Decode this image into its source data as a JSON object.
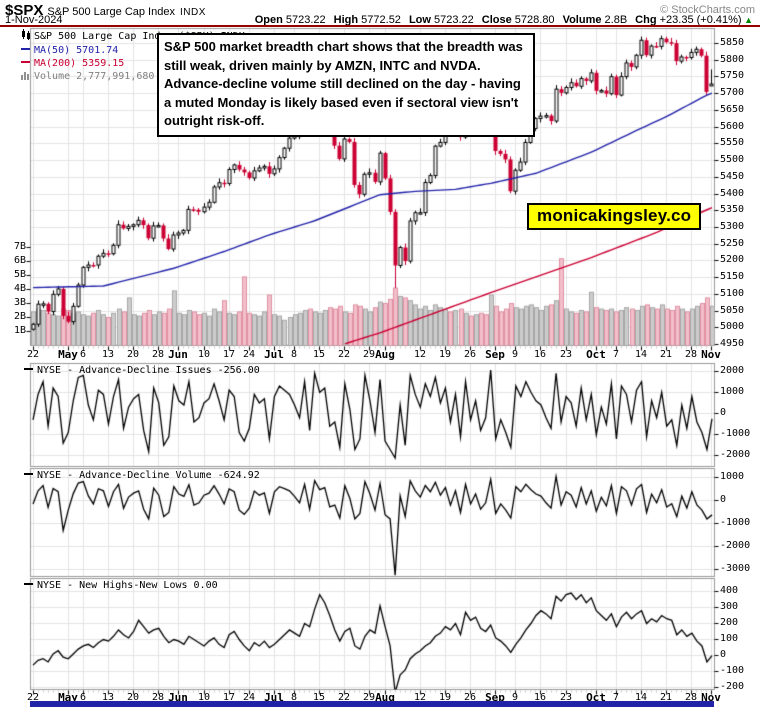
{
  "header": {
    "symbol": "$SPX",
    "name": "S&P 500 Large Cap Index",
    "exchange": "INDX",
    "credit": "© StockCharts.com",
    "date": "1-Nov-2024",
    "ohlc": [
      {
        "label": "Open",
        "value": "5723.22"
      },
      {
        "label": "High",
        "value": "5772.52"
      },
      {
        "label": "Low",
        "value": "5723.22"
      },
      {
        "label": "Close",
        "value": "5728.80"
      },
      {
        "label": "Volume",
        "value": "2.8B"
      },
      {
        "label": "Chg",
        "value": "+23.35 (+0.41%)"
      }
    ],
    "chg_arrow": "▲",
    "chg_direction": "up"
  },
  "main_legend": {
    "title": "S&P 500 Large Cap Index ($SPX) INDX",
    "ma50_label": "MA(50) 5701.74",
    "ma200_label": "MA(200) 5359.15",
    "volume_label": "Volume 2,777,991,680"
  },
  "annotation_box": {
    "text": "S&P 500 market breadth chart shows that the breadth was still weak, driven mainly by AMZN, INTC and NVDA. Advance-decline volume still declined on the day - having a muted Monday is likely based even if sectoral view isn't outright risk-off."
  },
  "watermark": {
    "text": "monicakingsley.co",
    "bg": "#ffff00"
  },
  "colors": {
    "candle_down": "#cc0033",
    "candle_up_fill": "#ffffff",
    "candle_up_stroke": "#000000",
    "ma50": "#2222aa",
    "ma200": "#cc0033",
    "volume_up": "#cccccc",
    "volume_up_edge": "#a8a8a8",
    "volume_down": "#f3bfcb",
    "volume_down_edge": "#df92a4",
    "grid": "#e4e4e4",
    "panel_border": "#999999",
    "breadth_line": "#000000",
    "header_rule": "#990000",
    "footer_bar": "#2323a7",
    "chg_up_green": "#008800",
    "volume_legend_text": "#808080",
    "credit_text": "#888888"
  },
  "x_ticks": [
    {
      "label": "22",
      "day": 0
    },
    {
      "label": "May",
      "day": 7,
      "bold": true
    },
    {
      "label": "6",
      "day": 10
    },
    {
      "label": "13",
      "day": 15
    },
    {
      "label": "20",
      "day": 20
    },
    {
      "label": "28",
      "day": 25
    },
    {
      "label": "Jun",
      "day": 29,
      "bold": true
    },
    {
      "label": "10",
      "day": 34
    },
    {
      "label": "17",
      "day": 39
    },
    {
      "label": "24",
      "day": 43
    },
    {
      "label": "Jul",
      "day": 48,
      "bold": true
    },
    {
      "label": "8",
      "day": 52
    },
    {
      "label": "15",
      "day": 57
    },
    {
      "label": "22",
      "day": 62
    },
    {
      "label": "29",
      "day": 67
    },
    {
      "label": "Aug",
      "day": 70,
      "bold": true
    },
    {
      "label": "12",
      "day": 77
    },
    {
      "label": "19",
      "day": 82
    },
    {
      "label": "26",
      "day": 87
    },
    {
      "label": "Sep",
      "day": 92,
      "bold": true
    },
    {
      "label": "9",
      "day": 96
    },
    {
      "label": "16",
      "day": 101
    },
    {
      "label": "23",
      "day": 106
    },
    {
      "label": "Oct",
      "day": 112,
      "bold": true
    },
    {
      "label": "7",
      "day": 116
    },
    {
      "label": "14",
      "day": 121
    },
    {
      "label": "21",
      "day": 126
    },
    {
      "label": "28",
      "day": 131
    },
    {
      "label": "Nov",
      "day": 135,
      "bold": true
    }
  ],
  "chart_data": [
    {
      "type": "candlestick",
      "title": "S&P 500 Large Cap Index ($SPX) INDX",
      "date_range": "22-Apr-2024 to 1-Nov-2024",
      "ylim": [
        4947,
        5895
      ],
      "y_ticks": [
        5850,
        5800,
        5750,
        5700,
        5650,
        5600,
        5550,
        5500,
        5450,
        5400,
        5350,
        5300,
        5250,
        5200,
        5150,
        5100,
        5050,
        5000,
        4950
      ],
      "volume_ticks_B": [
        7,
        6,
        5,
        4,
        3,
        2,
        1
      ],
      "closes": [
        5010.6,
        5070.55,
        5071.63,
        5048.42,
        5099.96,
        5116.17,
        5035.69,
        5018.39,
        5064.2,
        5127.79,
        5180.74,
        5187.7,
        5187.67,
        5214.08,
        5222.68,
        5221.42,
        5246.68,
        5308.15,
        5297.1,
        5303.27,
        5308.13,
        5321.41,
        5307.01,
        5267.84,
        5304.72,
        5306.04,
        5266.95,
        5235.48,
        5277.51,
        5283.4,
        5291.34,
        5354.03,
        5352.96,
        5346.99,
        5360.79,
        5375.32,
        5421.03,
        5433.74,
        5431.6,
        5473.23,
        5487.03,
        5473.17,
        5464.62,
        5447.87,
        5469.3,
        5477.9,
        5482.87,
        5460.48,
        5475.09,
        5509.01,
        5537.02,
        5567.19,
        5572.85,
        5576.98,
        5633.91,
        5584.54,
        5615.35,
        5631.22,
        5667.2,
        5588.27,
        5544.59,
        5505.0,
        5564.41,
        5555.74,
        5427.13,
        5399.22,
        5459.1,
        5463.54,
        5436.44,
        5522.3,
        5446.68,
        5346.56,
        5186.33,
        5240.03,
        5199.5,
        5319.31,
        5344.16,
        5344.39,
        5434.43,
        5455.21,
        5543.22,
        5554.25,
        5608.25,
        5597.12,
        5620.85,
        5570.64,
        5634.61,
        5616.84,
        5625.8,
        5592.18,
        5591.96,
        5648.4,
        5528.93,
        5520.07,
        5503.41,
        5408.42,
        5471.05,
        5495.52,
        5554.13,
        5595.76,
        5626.02,
        5633.09,
        5634.58,
        5618.26,
        5713.64,
        5702.55,
        5718.57,
        5732.93,
        5722.26,
        5745.37,
        5738.17,
        5762.48,
        5708.75,
        5709.54,
        5699.94,
        5751.07,
        5695.94,
        5751.13,
        5792.04,
        5780.05,
        5815.03,
        5859.85,
        5815.26,
        5842.47,
        5841.47,
        5864.67,
        5853.98,
        5851.2,
        5797.42,
        5809.86,
        5808.12,
        5823.52,
        5832.92,
        5813.67,
        5705.45,
        5728.8
      ],
      "volumes_B": [
        2.4,
        2.6,
        2.5,
        2.3,
        2.2,
        2.1,
        2.6,
        2.5,
        2.3,
        2.4,
        2.2,
        2.1,
        2.3,
        2.5,
        2.2,
        2.0,
        2.3,
        2.6,
        2.4,
        3.4,
        2.2,
        2.1,
        2.3,
        2.5,
        2.2,
        2.4,
        2.3,
        2.6,
        3.9,
        2.3,
        2.2,
        2.5,
        2.4,
        2.2,
        2.3,
        2.1,
        2.6,
        2.4,
        3.2,
        2.3,
        2.2,
        2.4,
        4.9,
        2.3,
        2.2,
        2.1,
        2.4,
        3.6,
        2.2,
        2.1,
        1.8,
        2.0,
        2.2,
        2.3,
        2.5,
        2.6,
        2.4,
        2.3,
        2.5,
        2.7,
        2.6,
        2.8,
        2.4,
        2.3,
        2.9,
        2.8,
        2.6,
        2.4,
        2.7,
        3.1,
        3.0,
        3.3,
        4.1,
        3.5,
        3.4,
        3.2,
        2.9,
        2.6,
        2.8,
        2.5,
        2.9,
        2.7,
        2.6,
        2.4,
        2.5,
        2.6,
        2.3,
        2.1,
        2.2,
        2.3,
        2.2,
        3.6,
        2.8,
        2.4,
        2.6,
        3.0,
        2.7,
        2.6,
        2.8,
        2.9,
        2.7,
        2.5,
        2.8,
        2.9,
        3.2,
        6.2,
        2.6,
        2.4,
        2.3,
        2.5,
        2.4,
        3.8,
        2.7,
        2.6,
        2.5,
        2.6,
        2.4,
        2.5,
        2.7,
        2.6,
        2.5,
        2.8,
        2.9,
        2.7,
        2.6,
        2.9,
        2.6,
        2.5,
        2.8,
        2.6,
        2.4,
        2.6,
        2.8,
        3.0,
        3.4,
        2.8
      ],
      "last_bar_ohlc": {
        "open": 5723.22,
        "high": 5772.52,
        "low": 5723.22,
        "close": 5728.8
      },
      "special_lows": {
        "72": 5119
      },
      "ma50": {
        "name": "MA(50)",
        "last": 5701.74,
        "anchor_days": [
          0,
          14,
          28,
          38,
          47,
          56,
          69,
          76,
          84,
          91,
          100,
          111,
          120,
          126,
          134,
          135
        ],
        "anchor_values": [
          5120,
          5125,
          5178,
          5228,
          5278,
          5320,
          5398,
          5408,
          5414,
          5432,
          5462,
          5525,
          5590,
          5632,
          5696,
          5701.74
        ]
      },
      "ma200": {
        "name": "MA(200)",
        "last": 5359.15,
        "anchor_days": [
          0,
          28,
          47,
          62,
          69,
          91,
          111,
          124,
          134,
          135
        ],
        "anchor_values": [
          4680,
          4775,
          4870,
          4952,
          4985,
          5105,
          5210,
          5285,
          5353,
          5359.15
        ]
      },
      "total_volume_last": "2,777,991,680"
    },
    {
      "type": "line",
      "title": "NYSE - Advance-Decline Issues",
      "last_value": -256.0,
      "legend": "NYSE - Advance-Decline Issues -256.00",
      "ylim": [
        -2500,
        2358
      ],
      "y_ticks": [
        2000,
        1000,
        0,
        -1000,
        -2000
      ],
      "values": [
        -300,
        900,
        1500,
        -600,
        1200,
        800,
        -1400,
        -900,
        600,
        1700,
        1800,
        400,
        -300,
        1100,
        900,
        -500,
        800,
        1600,
        -700,
        300,
        700,
        900,
        -800,
        -1800,
        1200,
        500,
        -1500,
        -1100,
        1300,
        600,
        400,
        1500,
        -400,
        -200,
        500,
        700,
        1400,
        600,
        -300,
        1100,
        800,
        -900,
        -1300,
        -700,
        900,
        500,
        700,
        -1200,
        800,
        1300,
        1100,
        900,
        400,
        -200,
        1500,
        -800,
        1900,
        1000,
        1200,
        -600,
        -400,
        -1600,
        1400,
        200,
        -1700,
        -1200,
        1800,
        600,
        -900,
        1600,
        -1300,
        -1700,
        -2100,
        400,
        -1500,
        1800,
        900,
        300,
        1400,
        800,
        1700,
        500,
        1200,
        -400,
        900,
        -1100,
        1500,
        -300,
        600,
        -800,
        -200,
        2050,
        -1200,
        -300,
        -900,
        -1600,
        1300,
        800,
        1500,
        1000,
        600,
        400,
        -200,
        -700,
        1900,
        -400,
        800,
        500,
        -600,
        1200,
        -300,
        900,
        -1000,
        300,
        -500,
        1400,
        -1200,
        1300,
        900,
        -400,
        1100,
        1500,
        -1100,
        600,
        -200,
        1000,
        -600,
        -300,
        -1500,
        400,
        -700,
        800,
        -400,
        -900,
        -1700,
        -256
      ]
    },
    {
      "type": "line",
      "title": "NYSE - Advance-Decline Volume",
      "last_value": -624.92,
      "legend": "NYSE - Advance-Decline Volume -624.92",
      "ylim": [
        -3304,
        1391
      ],
      "y_ticks": [
        1000,
        0,
        -1000,
        -2000,
        -3000
      ],
      "values": [
        -150,
        420,
        650,
        -300,
        520,
        380,
        -1300,
        -420,
        300,
        760,
        820,
        200,
        -150,
        510,
        420,
        -260,
        380,
        700,
        -340,
        150,
        320,
        420,
        -380,
        -800,
        540,
        230,
        -700,
        -520,
        600,
        280,
        180,
        680,
        -200,
        -100,
        230,
        320,
        640,
        280,
        -150,
        500,
        380,
        -420,
        -600,
        -330,
        410,
        230,
        330,
        -560,
        380,
        600,
        520,
        420,
        180,
        -100,
        700,
        -380,
        860,
        470,
        560,
        -280,
        -200,
        -760,
        640,
        90,
        -800,
        -560,
        820,
        280,
        -420,
        740,
        -620,
        -800,
        -3250,
        200,
        -700,
        850,
        420,
        150,
        650,
        380,
        790,
        230,
        560,
        -200,
        420,
        -520,
        700,
        -150,
        280,
        -380,
        -100,
        920,
        -560,
        -150,
        -420,
        -760,
        600,
        380,
        700,
        470,
        280,
        190,
        -100,
        -330,
        1050,
        -200,
        380,
        230,
        -280,
        560,
        -150,
        420,
        -470,
        140,
        -230,
        650,
        -560,
        600,
        420,
        -190,
        510,
        700,
        -520,
        280,
        -100,
        470,
        -280,
        -140,
        -700,
        190,
        -330,
        380,
        -190,
        -420,
        -800,
        -624.92
      ]
    },
    {
      "type": "line",
      "title": "NYSE - New Highs-New Lows",
      "last_value": 0.0,
      "legend": "NYSE - New Highs-New Lows 0.00",
      "ylim": [
        -212,
        481
      ],
      "y_ticks": [
        400,
        300,
        200,
        100,
        0,
        -100,
        -200
      ],
      "values": [
        -60,
        -30,
        -20,
        -40,
        10,
        30,
        -10,
        -20,
        10,
        40,
        60,
        70,
        50,
        80,
        100,
        90,
        120,
        160,
        130,
        110,
        150,
        220,
        180,
        140,
        160,
        170,
        120,
        80,
        100,
        90,
        70,
        120,
        100,
        80,
        60,
        90,
        110,
        70,
        50,
        130,
        150,
        100,
        60,
        30,
        80,
        60,
        90,
        50,
        70,
        100,
        130,
        160,
        140,
        120,
        200,
        180,
        290,
        380,
        330,
        250,
        160,
        90,
        150,
        170,
        60,
        40,
        120,
        160,
        140,
        310,
        180,
        60,
        -230,
        -120,
        -90,
        -20,
        10,
        30,
        60,
        80,
        120,
        140,
        180,
        160,
        200,
        130,
        270,
        220,
        240,
        170,
        150,
        190,
        110,
        90,
        60,
        20,
        70,
        110,
        160,
        200,
        250,
        280,
        260,
        230,
        370,
        340,
        380,
        390,
        350,
        380,
        330,
        360,
        280,
        250,
        220,
        260,
        180,
        240,
        270,
        230,
        260,
        280,
        200,
        230,
        210,
        250,
        230,
        220,
        130,
        160,
        120,
        140,
        90,
        60,
        -40,
        0
      ]
    }
  ]
}
